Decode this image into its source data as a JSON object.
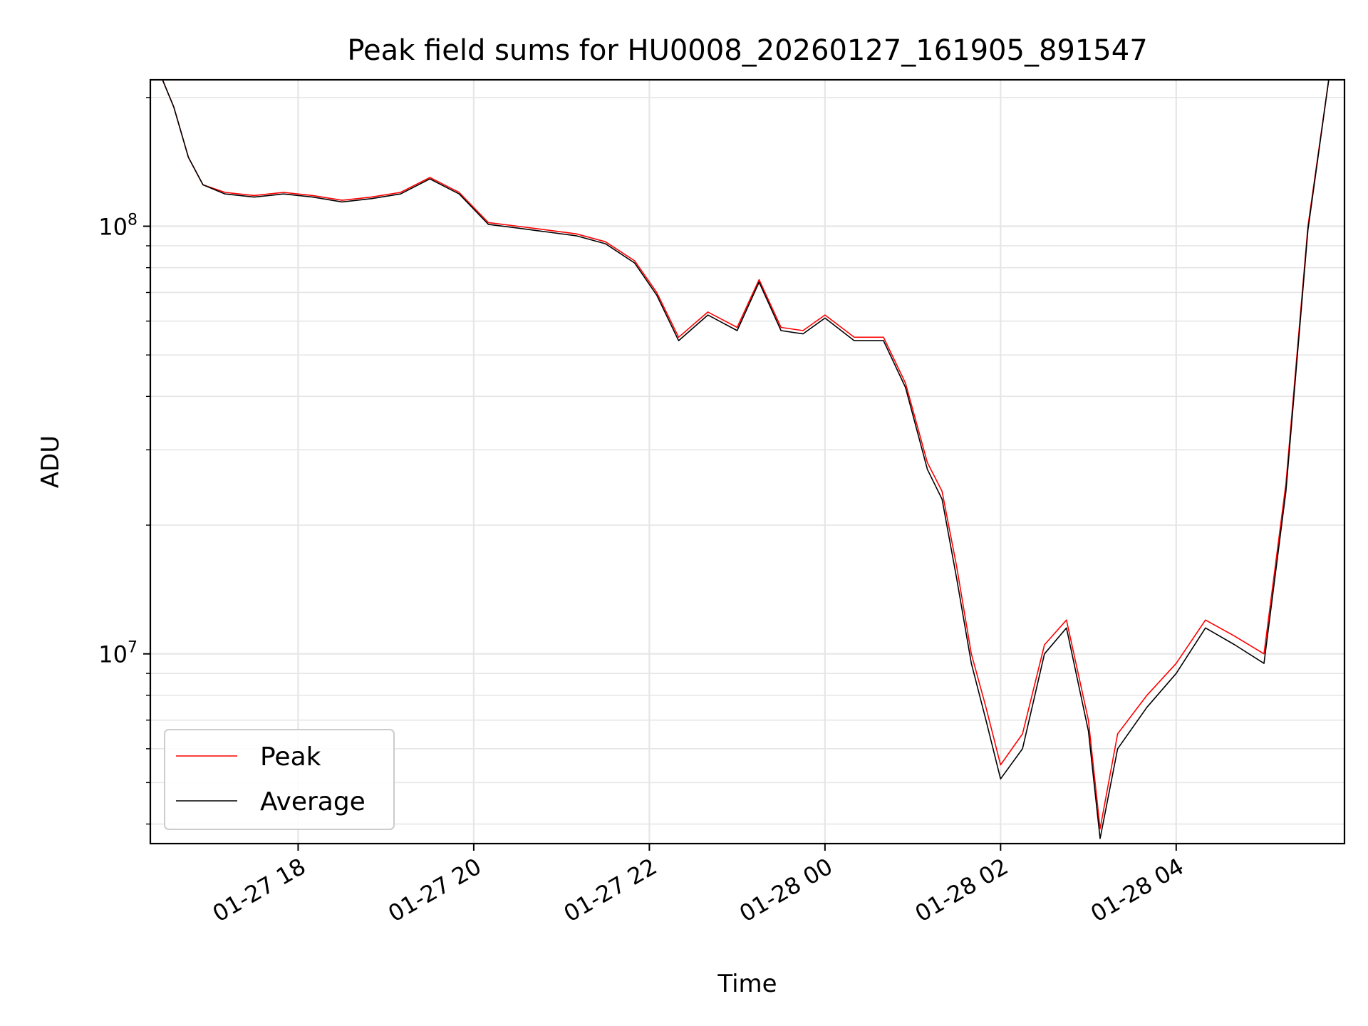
{
  "chart_data": {
    "type": "line",
    "title": "Peak field sums for HU0008_20260127_161905_891547",
    "xlabel": "Time",
    "ylabel": "ADU",
    "y_scale": "log",
    "ylim": [
      3600000,
      220000000
    ],
    "xlim": [
      "2026-01-27 16:19",
      "2026-01-28 05:55"
    ],
    "grid": true,
    "legend_position": "lower-left",
    "x_ticks": [
      "01-27 18",
      "01-27 20",
      "01-27 22",
      "01-28 00",
      "01-28 02",
      "01-28 04"
    ],
    "x_tick_times": [
      "2026-01-27 18:00",
      "2026-01-27 20:00",
      "2026-01-27 22:00",
      "2026-01-28 00:00",
      "2026-01-28 02:00",
      "2026-01-28 04:00"
    ],
    "y_ticks": [
      {
        "base": "10",
        "exp": "8",
        "value": 100000000
      },
      {
        "base": "10",
        "exp": "7",
        "value": 10000000
      }
    ],
    "series": [
      {
        "name": "Peak",
        "color": "#ff0000",
        "x": [
          "2026-01-27 16:25",
          "2026-01-27 16:35",
          "2026-01-27 16:45",
          "2026-01-27 16:55",
          "2026-01-27 17:10",
          "2026-01-27 17:30",
          "2026-01-27 17:50",
          "2026-01-27 18:10",
          "2026-01-27 18:30",
          "2026-01-27 18:50",
          "2026-01-27 19:10",
          "2026-01-27 19:30",
          "2026-01-27 19:50",
          "2026-01-27 20:10",
          "2026-01-27 20:30",
          "2026-01-27 20:50",
          "2026-01-27 21:10",
          "2026-01-27 21:30",
          "2026-01-27 21:50",
          "2026-01-27 22:05",
          "2026-01-27 22:20",
          "2026-01-27 22:40",
          "2026-01-27 23:00",
          "2026-01-27 23:15",
          "2026-01-27 23:30",
          "2026-01-27 23:45",
          "2026-01-28 00:00",
          "2026-01-28 00:20",
          "2026-01-28 00:40",
          "2026-01-28 00:55",
          "2026-01-28 01:10",
          "2026-01-28 01:20",
          "2026-01-28 01:30",
          "2026-01-28 01:40",
          "2026-01-28 01:50",
          "2026-01-28 02:00",
          "2026-01-28 02:15",
          "2026-01-28 02:30",
          "2026-01-28 02:45",
          "2026-01-28 03:00",
          "2026-01-28 03:08",
          "2026-01-28 03:20",
          "2026-01-28 03:40",
          "2026-01-28 04:00",
          "2026-01-28 04:20",
          "2026-01-28 04:40",
          "2026-01-28 05:00",
          "2026-01-28 05:15",
          "2026-01-28 05:30",
          "2026-01-28 05:45"
        ],
        "values": [
          230000000,
          190000000,
          145000000,
          125000000,
          120000000,
          118000000,
          120000000,
          118000000,
          115000000,
          117000000,
          120000000,
          130000000,
          120000000,
          102000000,
          100000000,
          98000000,
          96000000,
          92000000,
          83000000,
          70000000,
          55000000,
          63000000,
          58000000,
          75000000,
          58000000,
          57000000,
          62000000,
          55000000,
          55000000,
          43000000,
          28000000,
          24000000,
          16000000,
          10000000,
          7500000,
          5500000,
          6500000,
          10500000,
          12000000,
          7000000,
          3900000,
          6500000,
          8000000,
          9500000,
          12000000,
          11000000,
          10000000,
          25000000,
          100000000,
          230000000
        ]
      },
      {
        "name": "Average",
        "color": "#000000",
        "x": [
          "2026-01-27 16:25",
          "2026-01-27 16:35",
          "2026-01-27 16:45",
          "2026-01-27 16:55",
          "2026-01-27 17:10",
          "2026-01-27 17:30",
          "2026-01-27 17:50",
          "2026-01-27 18:10",
          "2026-01-27 18:30",
          "2026-01-27 18:50",
          "2026-01-27 19:10",
          "2026-01-27 19:30",
          "2026-01-27 19:50",
          "2026-01-27 20:10",
          "2026-01-27 20:30",
          "2026-01-27 20:50",
          "2026-01-27 21:10",
          "2026-01-27 21:30",
          "2026-01-27 21:50",
          "2026-01-27 22:05",
          "2026-01-27 22:20",
          "2026-01-27 22:40",
          "2026-01-27 23:00",
          "2026-01-27 23:15",
          "2026-01-27 23:30",
          "2026-01-27 23:45",
          "2026-01-28 00:00",
          "2026-01-28 00:20",
          "2026-01-28 00:40",
          "2026-01-28 00:55",
          "2026-01-28 01:10",
          "2026-01-28 01:20",
          "2026-01-28 01:30",
          "2026-01-28 01:40",
          "2026-01-28 01:50",
          "2026-01-28 02:00",
          "2026-01-28 02:15",
          "2026-01-28 02:30",
          "2026-01-28 02:45",
          "2026-01-28 03:00",
          "2026-01-28 03:08",
          "2026-01-28 03:20",
          "2026-01-28 03:40",
          "2026-01-28 04:00",
          "2026-01-28 04:20",
          "2026-01-28 04:40",
          "2026-01-28 05:00",
          "2026-01-28 05:15",
          "2026-01-28 05:30",
          "2026-01-28 05:45"
        ],
        "values": [
          230000000,
          190000000,
          145000000,
          125000000,
          119000000,
          117000000,
          119000000,
          117000000,
          114000000,
          116000000,
          119000000,
          129000000,
          119000000,
          101000000,
          99000000,
          97000000,
          95000000,
          91000000,
          82000000,
          69000000,
          54000000,
          62000000,
          57000000,
          74000000,
          57000000,
          56000000,
          61000000,
          54000000,
          54000000,
          42000000,
          27000000,
          23000000,
          15000000,
          9500000,
          7000000,
          5100000,
          6000000,
          10000000,
          11500000,
          6600000,
          3700000,
          6000000,
          7500000,
          9000000,
          11500000,
          10500000,
          9500000,
          24000000,
          98000000,
          230000000
        ]
      }
    ]
  }
}
